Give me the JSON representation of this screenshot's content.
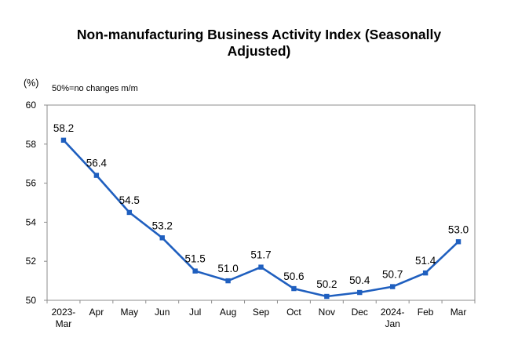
{
  "chart_data": {
    "type": "line",
    "title": "Non-manufacturing Business Activity Index (Seasonally Adjusted)",
    "title_lines": [
      "Non-manufacturing Business Activity Index (Seasonally",
      "Adjusted)"
    ],
    "ylabel": "(%)",
    "annotation": "50%=no changes m/m",
    "ylim": [
      50,
      60
    ],
    "yticks": [
      50,
      52,
      54,
      56,
      58,
      60
    ],
    "categories": [
      "2023-Mar",
      "Apr",
      "May",
      "Jun",
      "Jul",
      "Aug",
      "Sep",
      "Oct",
      "Nov",
      "Dec",
      "2024-Jan",
      "Feb",
      "Mar"
    ],
    "series": [
      {
        "values": [
          58.2,
          56.4,
          54.5,
          53.2,
          51.5,
          51.0,
          51.7,
          50.6,
          50.2,
          50.4,
          50.7,
          51.4,
          53.0
        ],
        "color": "#1f5fbf"
      }
    ],
    "grid": false,
    "legend": "none"
  }
}
